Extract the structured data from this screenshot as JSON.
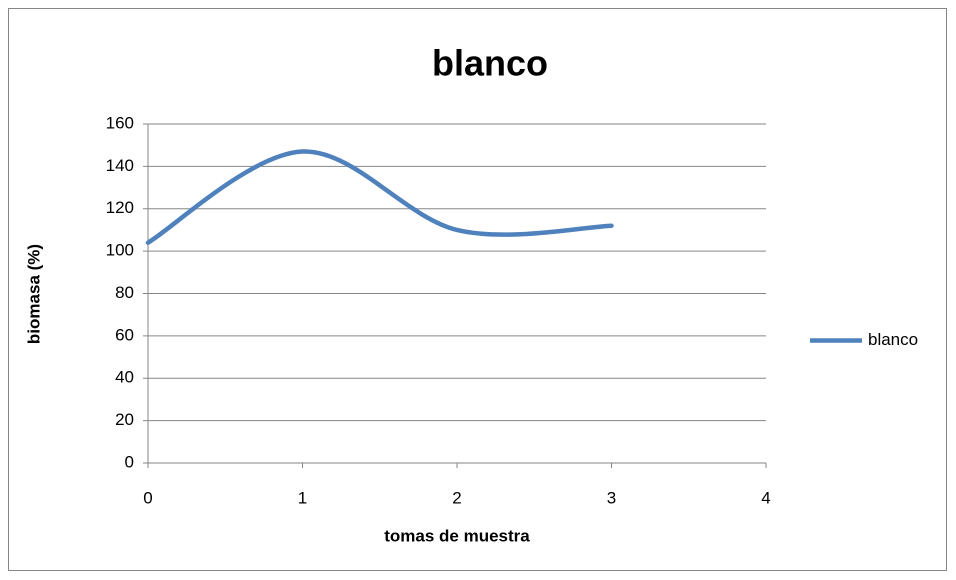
{
  "chart_data": {
    "type": "line",
    "smooth": true,
    "title": "blanco",
    "xlabel": "tomas de muestra",
    "ylabel": "biomasa (%)",
    "x": [
      0,
      1,
      2,
      3
    ],
    "series": [
      {
        "name": "blanco",
        "color": "#4f81bd",
        "values": [
          104,
          147,
          110,
          112
        ]
      }
    ],
    "xlim": [
      0,
      4
    ],
    "xticks": [
      0,
      1,
      2,
      3,
      4
    ],
    "ylim": [
      0,
      160
    ],
    "yticks": [
      0,
      20,
      40,
      60,
      80,
      100,
      120,
      140,
      160
    ],
    "grid": true,
    "legend": "right"
  }
}
